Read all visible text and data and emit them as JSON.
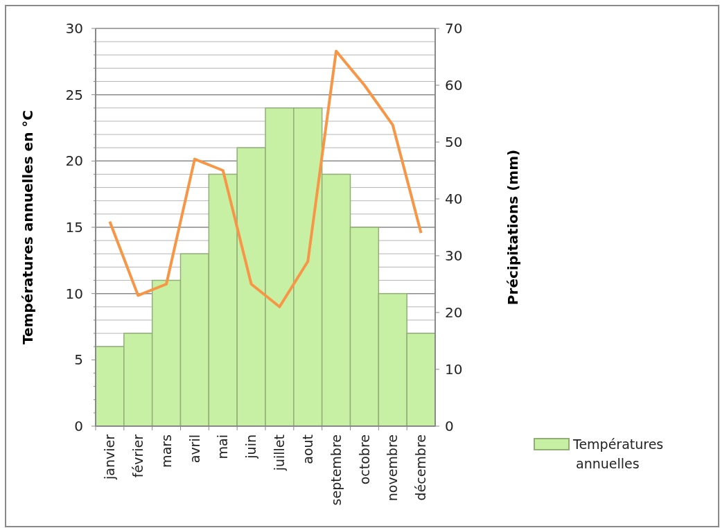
{
  "chart_data": {
    "type": "bar",
    "ylabel": "Températures annuelles en °C",
    "y2label": "Précipitations (mm)",
    "categories": [
      "janvier",
      "février",
      "mars",
      "avril",
      "mai",
      "juin",
      "juillet",
      "aout",
      "septembre",
      "octobre",
      "novembre",
      "décembre"
    ],
    "series": [
      {
        "name": "Températures annuelles",
        "color": "#c8f0a4",
        "values": [
          6,
          7,
          11,
          13,
          19,
          21,
          24,
          24,
          19,
          15,
          10,
          7
        ]
      },
      {
        "type": "line",
        "axis": "y2",
        "color": "#f79646",
        "values": [
          36,
          23,
          25,
          47,
          45,
          25,
          21,
          29,
          66,
          60,
          53,
          34
        ]
      }
    ],
    "ylim": [
      0,
      30
    ],
    "yticks": [
      0,
      {
        "value": 1,
        "label": null
      },
      {
        "value": 2,
        "label": null
      },
      {
        "value": 3,
        "label": null
      },
      {
        "value": 4,
        "label": null
      },
      5,
      {
        "value": 6,
        "label": null
      },
      {
        "value": 7,
        "label": null
      },
      {
        "value": 8,
        "label": null
      },
      {
        "value": 9,
        "label": null
      },
      10,
      {
        "value": 11,
        "label": null
      },
      {
        "value": 12,
        "label": null
      },
      {
        "value": 13,
        "label": null
      },
      {
        "value": 14,
        "label": null
      },
      15,
      {
        "value": 16,
        "label": null
      },
      {
        "value": 17,
        "label": null
      },
      {
        "value": 18,
        "label": null
      },
      {
        "value": 19,
        "label": null
      },
      20,
      {
        "value": 21,
        "label": null
      },
      {
        "value": 22,
        "label": null
      },
      {
        "value": 23,
        "label": null
      },
      {
        "value": 24,
        "label": null
      },
      25,
      {
        "value": 26,
        "label": null
      },
      {
        "value": 27,
        "label": null
      },
      {
        "value": 28,
        "label": null
      },
      {
        "value": 29,
        "label": null
      },
      30
    ],
    "y2lim": [
      0,
      70
    ],
    "y2ticks": [
      0,
      10,
      20,
      30,
      40,
      50,
      60,
      70
    ],
    "grid": "y",
    "legend": "right",
    "marker": "none",
    "line_style": "solid"
  }
}
